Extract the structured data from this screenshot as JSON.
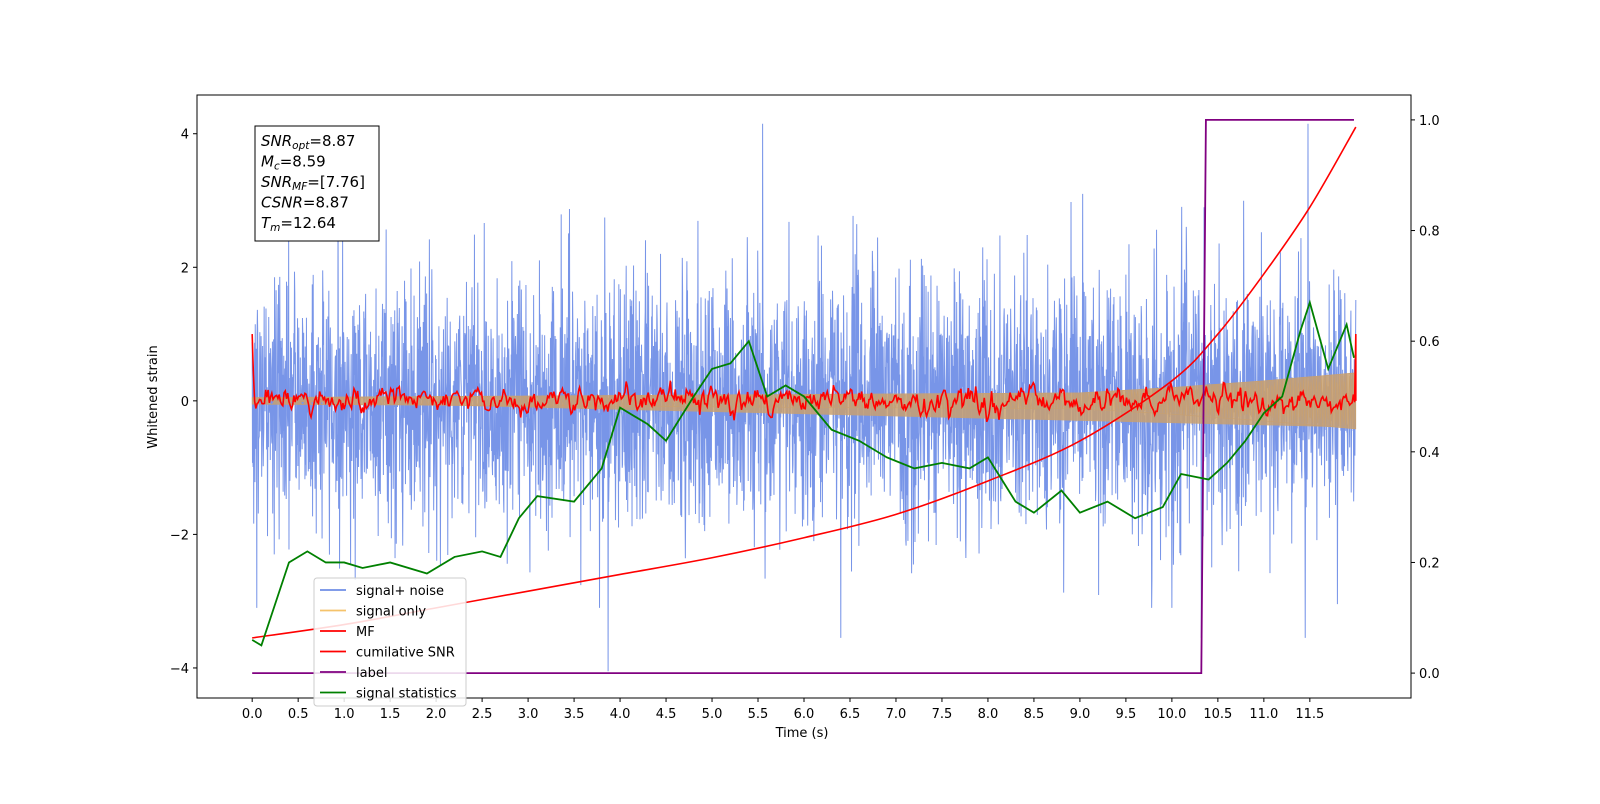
{
  "chart_data": {
    "type": "line",
    "xlabel": "Time (s)",
    "ylabel": "Whitened strain",
    "xlim": [
      -0.6,
      12.6
    ],
    "ylim": [
      -4.45,
      4.58
    ],
    "y2lim": [
      -0.045,
      1.045
    ],
    "x_ticks": [
      "0.0",
      "0.5",
      "1.0",
      "1.5",
      "2.0",
      "2.5",
      "3.0",
      "3.5",
      "4.0",
      "4.5",
      "5.0",
      "5.5",
      "6.0",
      "6.5",
      "7.0",
      "7.5",
      "8.0",
      "8.5",
      "9.0",
      "9.5",
      "10.0",
      "10.5",
      "11.0",
      "11.5"
    ],
    "y_ticks": [
      "4",
      "2",
      "0",
      "−2",
      "−4"
    ],
    "y2_ticks": [
      "1.0",
      "0.8",
      "0.6",
      "0.4",
      "0.2",
      "0.0"
    ],
    "annotation": {
      "lines": [
        {
          "main": "SNR",
          "sub": "opt",
          "value": "=8.87"
        },
        {
          "main": "M",
          "sub": "c",
          "value": "=8.59"
        },
        {
          "main": "SNR",
          "sub": "MF",
          "value": "=[7.76]"
        },
        {
          "main": "CSNR",
          "sub": "",
          "value": "=8.87"
        },
        {
          "main": "T",
          "sub": "m",
          "value": "=12.64"
        }
      ]
    },
    "legend": {
      "placement": "lower-left",
      "entries": [
        {
          "label": "signal+ noise",
          "color": "#6f8ee6"
        },
        {
          "label": "signal only",
          "color": "#f5c36b"
        },
        {
          "label": "MF",
          "color": "#ff0000"
        },
        {
          "label": "cumilative SNR",
          "color": "#ff0000"
        },
        {
          "label": "label",
          "color": "#800080"
        },
        {
          "label": "signal statistics",
          "color": "#008000"
        }
      ]
    },
    "series": [
      {
        "name": "signal+ noise",
        "axis": "left",
        "color": "#7895e8",
        "x_range": [
          0.0,
          12.0
        ],
        "description_values": {
          "typical_abs_max": 2.5,
          "peak_max": 4.15,
          "peak_min": -4.05
        }
      },
      {
        "name": "signal only",
        "axis": "left",
        "color": "#c8a070",
        "x_range": [
          0.0,
          12.0
        ],
        "envelope": {
          "x": [
            0,
            9,
            10,
            11,
            12
          ],
          "amp": [
            0.05,
            0.12,
            0.2,
            0.3,
            0.42
          ]
        }
      },
      {
        "name": "MF",
        "axis": "left",
        "color": "#ff0000",
        "x_range": [
          0.0,
          12.0
        ],
        "description_values": {
          "start": 1.0,
          "end": 1.0,
          "noise_amp": 0.12
        }
      },
      {
        "name": "cumilative SNR",
        "axis": "left",
        "color": "#ff0000",
        "x": [
          0.0,
          1.0,
          2.0,
          3.0,
          4.0,
          5.0,
          6.0,
          7.0,
          8.0,
          9.0,
          10.0,
          10.5,
          11.0,
          11.5,
          12.0
        ],
        "y": [
          -3.55,
          -3.35,
          -3.1,
          -2.85,
          -2.6,
          -2.35,
          -2.05,
          -1.7,
          -1.2,
          -0.6,
          0.3,
          1.0,
          1.9,
          2.9,
          4.1
        ]
      },
      {
        "name": "label",
        "axis": "right",
        "color": "#800080",
        "x": [
          0.0,
          10.32,
          10.37,
          11.98
        ],
        "y": [
          0.0,
          0.0,
          1.0,
          1.0
        ]
      },
      {
        "name": "signal statistics",
        "axis": "right",
        "color": "#008000",
        "x": [
          0.0,
          0.1,
          0.3,
          0.4,
          0.6,
          0.8,
          1.0,
          1.2,
          1.5,
          1.9,
          2.2,
          2.5,
          2.7,
          2.9,
          3.1,
          3.5,
          3.8,
          4.0,
          4.3,
          4.5,
          4.8,
          5.0,
          5.2,
          5.4,
          5.6,
          5.8,
          6.0,
          6.3,
          6.6,
          6.9,
          7.2,
          7.5,
          7.8,
          8.0,
          8.3,
          8.5,
          8.8,
          9.0,
          9.3,
          9.6,
          9.9,
          10.1,
          10.4,
          10.6,
          10.8,
          11.0,
          11.2,
          11.4,
          11.5,
          11.7,
          11.9,
          11.98
        ],
        "y": [
          0.06,
          0.05,
          0.15,
          0.2,
          0.22,
          0.2,
          0.2,
          0.19,
          0.2,
          0.18,
          0.21,
          0.22,
          0.21,
          0.28,
          0.32,
          0.31,
          0.37,
          0.48,
          0.45,
          0.42,
          0.5,
          0.55,
          0.56,
          0.6,
          0.5,
          0.52,
          0.5,
          0.44,
          0.42,
          0.39,
          0.37,
          0.38,
          0.37,
          0.39,
          0.31,
          0.29,
          0.33,
          0.29,
          0.31,
          0.28,
          0.3,
          0.36,
          0.35,
          0.38,
          0.42,
          0.47,
          0.5,
          0.62,
          0.67,
          0.55,
          0.63,
          0.57
        ]
      }
    ]
  }
}
